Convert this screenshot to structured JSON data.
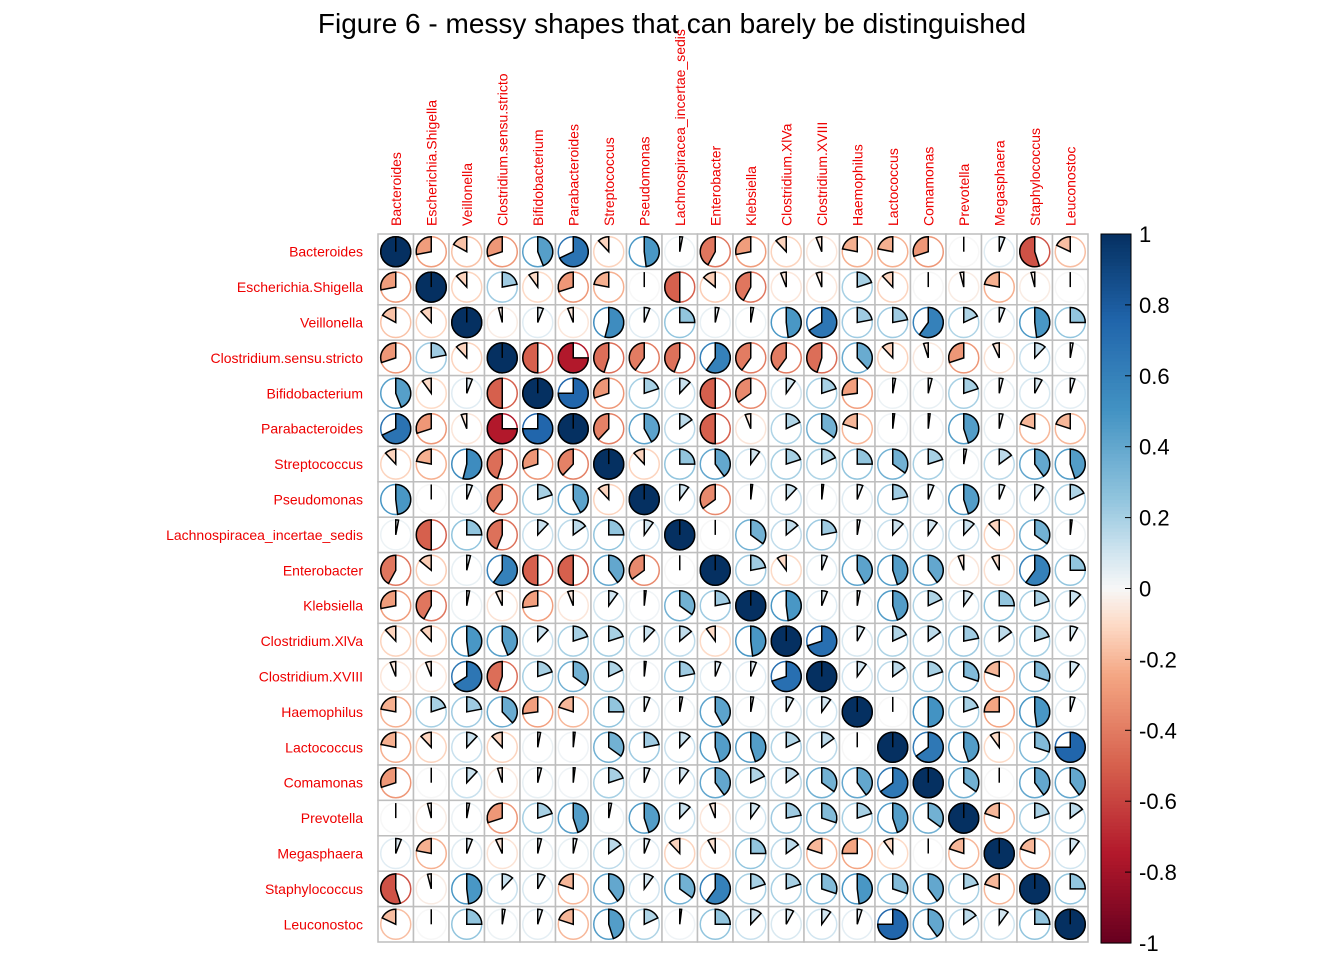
{
  "chart_data": {
    "type": "heatmap",
    "title": "Figure 6 - messy shapes that can barely be distinguished",
    "xlabel": "",
    "ylabel": "",
    "variables": [
      "Bacteroides",
      "Escherichia.Shigella",
      "Veillonella",
      "Clostridium.sensu.stricto",
      "Bifidobacterium",
      "Parabacteroides",
      "Streptococcus",
      "Pseudomonas",
      "Lachnospiracea_incertae_sedis",
      "Enterobacter",
      "Klebsiella",
      "Clostridium.XlVa",
      "Clostridium.XVIII",
      "Haemophilus",
      "Lactococcus",
      "Comamonas",
      "Prevotella",
      "Megasphaera",
      "Staphylococcus",
      "Leuconostoc"
    ],
    "matrix": [
      [
        1.0,
        -0.28,
        -0.17,
        -0.3,
        0.44,
        0.68,
        -0.12,
        0.48,
        0.03,
        -0.42,
        -0.28,
        -0.12,
        -0.06,
        -0.22,
        -0.22,
        -0.3,
        0.0,
        0.06,
        -0.55,
        -0.18
      ],
      [
        -0.28,
        1.0,
        -0.12,
        0.22,
        -0.1,
        -0.3,
        -0.22,
        0.0,
        -0.5,
        -0.14,
        -0.42,
        -0.06,
        -0.06,
        0.2,
        -0.12,
        0.0,
        -0.04,
        -0.22,
        -0.04,
        0.0
      ],
      [
        -0.17,
        -0.12,
        1.0,
        -0.04,
        0.06,
        -0.06,
        0.54,
        0.06,
        0.25,
        0.04,
        0.03,
        0.48,
        0.66,
        0.22,
        0.22,
        0.6,
        0.18,
        0.06,
        0.48,
        0.25
      ],
      [
        -0.3,
        0.22,
        -0.12,
        1.0,
        -0.5,
        -0.75,
        -0.45,
        -0.4,
        -0.44,
        0.6,
        -0.4,
        -0.4,
        -0.45,
        0.38,
        -0.12,
        -0.05,
        -0.3,
        -0.07,
        0.12,
        0.03
      ],
      [
        0.44,
        -0.1,
        0.06,
        -0.5,
        1.0,
        0.75,
        -0.3,
        0.2,
        0.12,
        -0.5,
        -0.35,
        0.1,
        0.2,
        -0.27,
        0.03,
        0.04,
        0.2,
        0.04,
        0.08,
        0.05
      ],
      [
        0.68,
        -0.3,
        -0.06,
        -0.75,
        0.75,
        1.0,
        -0.38,
        0.42,
        0.15,
        -0.5,
        -0.06,
        0.18,
        0.35,
        -0.2,
        0.02,
        0.02,
        0.45,
        0.04,
        -0.2,
        -0.2
      ],
      [
        -0.12,
        -0.22,
        0.54,
        -0.45,
        -0.3,
        -0.38,
        1.0,
        -0.12,
        0.25,
        0.4,
        0.1,
        0.2,
        0.18,
        0.25,
        0.35,
        0.2,
        0.03,
        0.15,
        0.4,
        0.45
      ],
      [
        0.48,
        0.0,
        0.06,
        -0.4,
        0.2,
        0.42,
        -0.12,
        1.0,
        0.1,
        -0.35,
        0.02,
        0.12,
        0.02,
        0.06,
        0.22,
        0.06,
        0.45,
        0.06,
        0.1,
        0.18
      ],
      [
        0.03,
        -0.5,
        0.25,
        -0.44,
        0.12,
        0.15,
        0.25,
        0.1,
        1.0,
        0.0,
        0.35,
        0.14,
        0.22,
        0.03,
        0.12,
        0.1,
        0.12,
        -0.12,
        0.35,
        0.02
      ],
      [
        -0.42,
        -0.14,
        0.04,
        0.6,
        -0.5,
        -0.5,
        0.4,
        -0.35,
        0.0,
        1.0,
        0.22,
        -0.1,
        0.06,
        0.42,
        0.45,
        0.4,
        -0.06,
        -0.08,
        0.6,
        0.25
      ],
      [
        -0.28,
        -0.42,
        0.03,
        -0.07,
        -0.27,
        -0.06,
        0.1,
        0.02,
        0.35,
        0.22,
        1.0,
        0.48,
        0.06,
        0.03,
        0.45,
        0.18,
        0.1,
        0.25,
        0.2,
        0.12
      ],
      [
        -0.12,
        -0.12,
        0.48,
        0.44,
        0.12,
        0.2,
        0.2,
        0.12,
        0.14,
        -0.1,
        0.48,
        1.0,
        0.7,
        0.08,
        0.18,
        0.15,
        0.22,
        0.15,
        0.2,
        0.08
      ],
      [
        -0.06,
        -0.06,
        0.66,
        -0.45,
        0.2,
        0.35,
        0.18,
        0.02,
        0.22,
        0.06,
        0.06,
        0.7,
        1.0,
        0.1,
        0.15,
        0.2,
        0.3,
        -0.2,
        0.3,
        0.1
      ],
      [
        -0.22,
        0.2,
        0.22,
        0.38,
        -0.27,
        -0.2,
        0.25,
        0.06,
        0.03,
        0.42,
        0.03,
        0.08,
        0.1,
        1.0,
        0.0,
        0.5,
        0.2,
        -0.25,
        0.48,
        0.05
      ],
      [
        -0.22,
        -0.12,
        0.12,
        -0.12,
        0.03,
        0.02,
        0.35,
        0.22,
        0.12,
        0.45,
        0.45,
        0.18,
        0.15,
        0.0,
        1.0,
        0.65,
        0.45,
        -0.1,
        0.3,
        0.75
      ],
      [
        -0.3,
        0.0,
        0.12,
        -0.05,
        0.04,
        0.02,
        0.2,
        0.06,
        0.1,
        0.4,
        0.18,
        0.15,
        0.35,
        0.4,
        0.65,
        1.0,
        0.35,
        0.0,
        0.4,
        0.4
      ],
      [
        0.0,
        -0.04,
        0.03,
        -0.3,
        0.2,
        0.45,
        0.03,
        0.45,
        0.12,
        -0.06,
        0.1,
        0.22,
        0.3,
        0.2,
        0.45,
        0.35,
        1.0,
        -0.2,
        0.2,
        0.15
      ],
      [
        0.06,
        -0.22,
        0.06,
        -0.07,
        0.04,
        0.04,
        0.15,
        0.06,
        -0.12,
        -0.08,
        0.25,
        0.15,
        -0.2,
        -0.25,
        -0.1,
        0.0,
        -0.2,
        1.0,
        -0.2,
        0.1
      ],
      [
        -0.55,
        -0.04,
        0.48,
        0.12,
        0.08,
        -0.2,
        0.4,
        0.1,
        0.35,
        0.6,
        0.2,
        0.2,
        0.3,
        0.48,
        0.3,
        0.4,
        0.2,
        -0.2,
        1.0,
        0.25
      ],
      [
        -0.18,
        0.0,
        0.25,
        0.03,
        0.05,
        -0.2,
        0.45,
        0.18,
        0.02,
        0.25,
        0.12,
        0.08,
        0.1,
        0.05,
        0.75,
        0.4,
        0.15,
        0.1,
        0.25,
        1.0
      ]
    ],
    "colorbar": {
      "ticks": [
        "1",
        "0.8",
        "0.6",
        "0.4",
        "0.2",
        "0",
        "-0.2",
        "-0.4",
        "-0.6",
        "-0.8",
        "-1"
      ],
      "range": [
        -1,
        1
      ]
    },
    "colors": {
      "strong_positive": "#053061",
      "positive": "#4393c3",
      "neutral": "#f7f7f7",
      "negative": "#d6604d",
      "strong_negative": "#67001f",
      "label_color": "#ee0000",
      "grid": "#bebebe"
    }
  }
}
